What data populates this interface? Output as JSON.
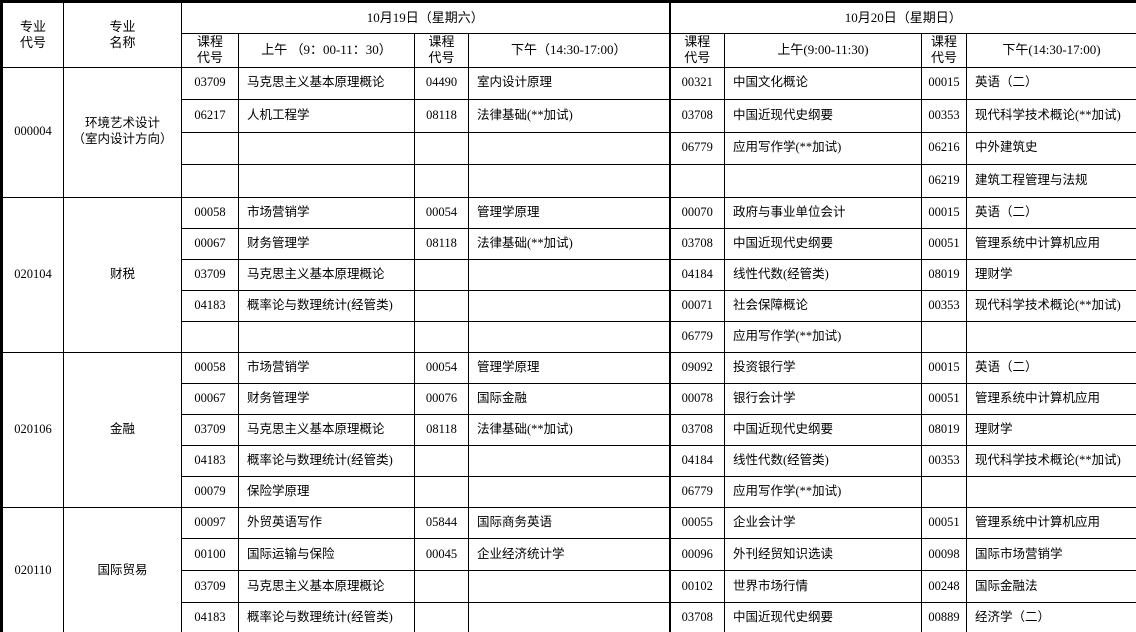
{
  "table": {
    "headers": {
      "major_code": "专业\n代号",
      "major_name": "专业\n名称",
      "day1": "10月19日（星期六）",
      "day2": "10月20日（星期日）",
      "course_code": "课程\n代号",
      "am1": "上午 （9：00-11：30）",
      "pm1": "下午（14:30-17:00）",
      "am2": "上午(9:00-11:30)",
      "pm2": "下午(14:30-17:00)"
    },
    "blocks": [
      {
        "major_code": "000004",
        "major_name": "环境艺术设计\n（室内设计方向）",
        "rows": [
          [
            "03709",
            "马克思主义基本原理概论",
            "04490",
            "室内设计原理",
            "00321",
            "中国文化概论",
            "00015",
            "英语（二）"
          ],
          [
            "06217",
            "人机工程学",
            "08118",
            "法律基础(**加试)",
            "03708",
            "中国近现代史纲要",
            "00353",
            "现代科学技术概论(**加试)"
          ],
          [
            "",
            "",
            "",
            "",
            "06779",
            "应用写作学(**加试)",
            "06216",
            "中外建筑史"
          ],
          [
            "",
            "",
            "",
            "",
            "",
            "",
            "06219",
            "建筑工程管理与法规"
          ]
        ]
      },
      {
        "major_code": "020104",
        "major_name": "财税",
        "rows": [
          [
            "00058",
            "市场营销学",
            "00054",
            "管理学原理",
            "00070",
            "政府与事业单位会计",
            "00015",
            "英语（二）"
          ],
          [
            "00067",
            "财务管理学",
            "08118",
            "法律基础(**加试)",
            "03708",
            "中国近现代史纲要",
            "00051",
            "管理系统中计算机应用"
          ],
          [
            "03709",
            "马克思主义基本原理概论",
            "",
            "",
            "04184",
            "线性代数(经管类)",
            "08019",
            "理财学"
          ],
          [
            "04183",
            "概率论与数理统计(经管类)",
            "",
            "",
            "00071",
            "社会保障概论",
            "00353",
            "现代科学技术概论(**加试)"
          ],
          [
            "",
            "",
            "",
            "",
            "06779",
            "应用写作学(**加试)",
            "",
            ""
          ]
        ]
      },
      {
        "major_code": "020106",
        "major_name": "金融",
        "rows": [
          [
            "00058",
            "市场营销学",
            "00054",
            "管理学原理",
            "09092",
            "投资银行学",
            "00015",
            "英语（二）"
          ],
          [
            "00067",
            "财务管理学",
            "00076",
            "国际金融",
            "00078",
            "银行会计学",
            "00051",
            "管理系统中计算机应用"
          ],
          [
            "03709",
            "马克思主义基本原理概论",
            "08118",
            "法律基础(**加试)",
            "03708",
            "中国近现代史纲要",
            "08019",
            "理财学"
          ],
          [
            "04183",
            "概率论与数理统计(经管类)",
            "",
            "",
            "04184",
            "线性代数(经管类)",
            "00353",
            "现代科学技术概论(**加试)"
          ],
          [
            "00079",
            "保险学原理",
            "",
            "",
            "06779",
            "应用写作学(**加试)",
            "",
            ""
          ]
        ]
      },
      {
        "major_code": "020110",
        "major_name": "国际贸易",
        "rows": [
          [
            "00097",
            "外贸英语写作",
            "05844",
            "国际商务英语",
            "00055",
            "企业会计学",
            "00051",
            "管理系统中计算机应用"
          ],
          [
            "00100",
            "国际运输与保险",
            "00045",
            "企业经济统计学",
            "00096",
            "外刊经贸知识选读",
            "00098",
            "国际市场营销学"
          ],
          [
            "03709",
            "马克思主义基本原理概论",
            "",
            "",
            "00102",
            "世界市场行情",
            "00248",
            "国际金融法"
          ],
          [
            "04183",
            "概率论与数理统计(经管类)",
            "",
            "",
            "03708",
            "中国近现代史纲要",
            "00889",
            "经济学（二）"
          ]
        ]
      }
    ]
  }
}
